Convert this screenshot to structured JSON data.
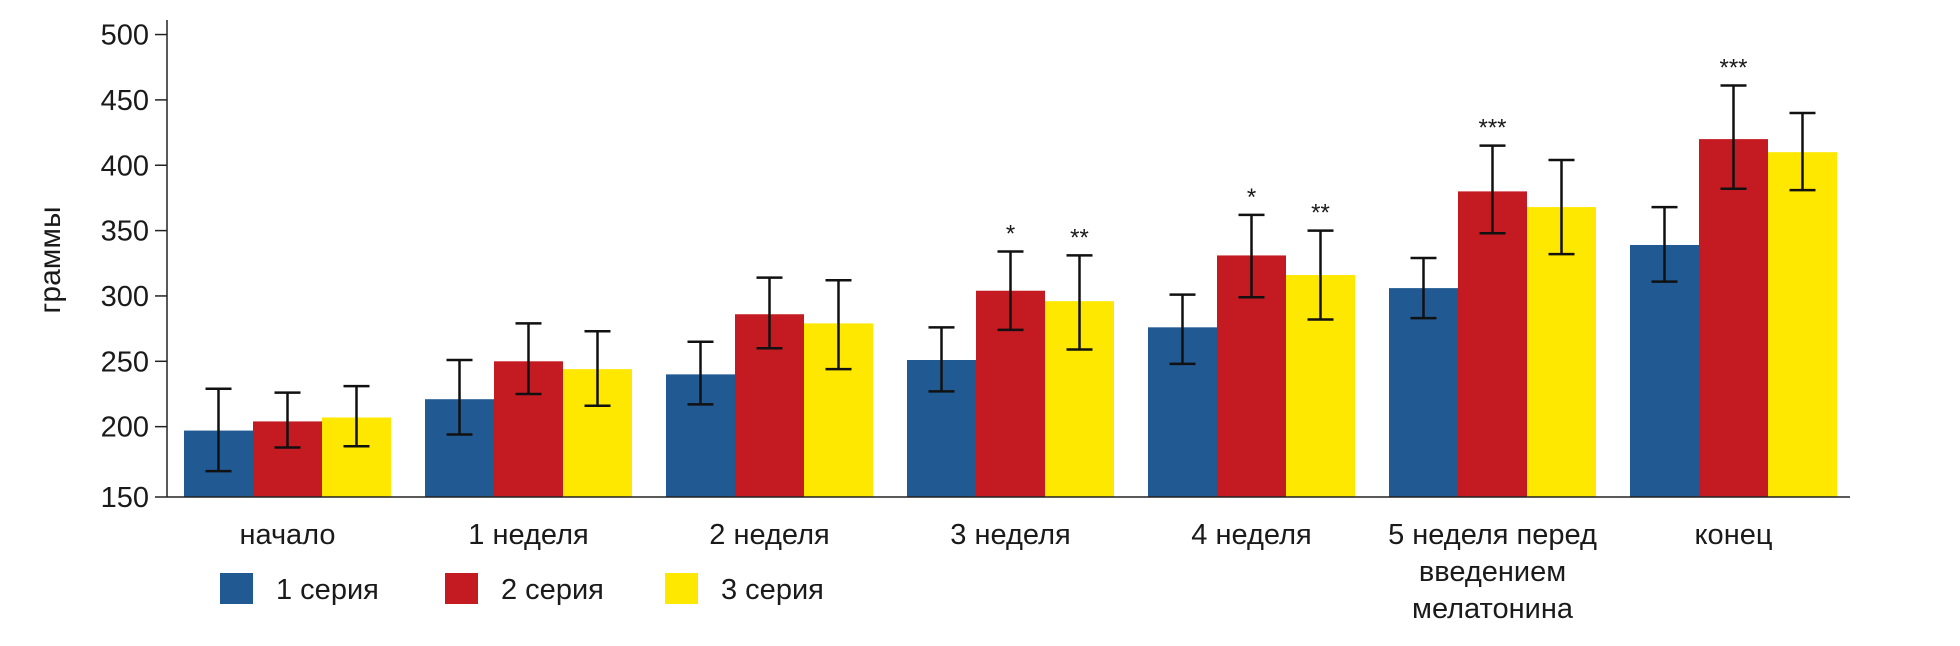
{
  "chart_data": {
    "type": "bar",
    "ylabel": "граммы",
    "ylim": [
      150,
      500
    ],
    "yticks": [
      "150",
      "200",
      "250",
      "300",
      "350",
      "400",
      "450",
      "500"
    ],
    "categories": [
      [
        "начало"
      ],
      [
        "1 неделя"
      ],
      [
        "2 неделя"
      ],
      [
        "3 неделя"
      ],
      [
        "4 неделя"
      ],
      [
        "5 неделя перед",
        "введением",
        "мелатонина"
      ],
      [
        "конец"
      ]
    ],
    "series": [
      {
        "name": "1 серия",
        "color": "#215a93",
        "values": [
          197,
          221,
          240,
          251,
          276,
          306,
          339
        ],
        "err_low": [
          166,
          194,
          217,
          227,
          248,
          283,
          311
        ],
        "err_high": [
          229,
          251,
          265,
          276,
          301,
          329,
          368
        ],
        "signif": [
          "",
          "",
          "",
          "",
          "",
          "",
          ""
        ]
      },
      {
        "name": "2 серия",
        "color": "#c41a22",
        "values": [
          204,
          250,
          286,
          304,
          331,
          380,
          420
        ],
        "err_low": [
          184,
          225,
          260,
          274,
          299,
          348,
          382
        ],
        "err_high": [
          226,
          279,
          314,
          334,
          362,
          415,
          461
        ],
        "signif": [
          "",
          "",
          "",
          "*",
          "*",
          "***",
          "***"
        ]
      },
      {
        "name": "3 серия",
        "color": "#ffe800",
        "values": [
          207,
          244,
          279,
          296,
          316,
          368,
          410
        ],
        "err_low": [
          185,
          216,
          244,
          259,
          282,
          332,
          381
        ],
        "err_high": [
          231,
          273,
          312,
          331,
          350,
          404,
          440
        ],
        "signif": [
          "",
          "",
          "",
          "**",
          "**",
          "",
          ""
        ]
      }
    ],
    "legend": [
      "1 серия",
      "2 серия",
      "3 серия"
    ],
    "grid": false,
    "legend_position": "bottom-left"
  }
}
